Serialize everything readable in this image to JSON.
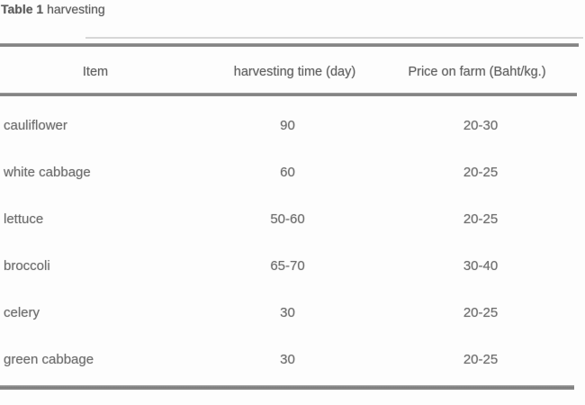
{
  "caption": {
    "number": "Table 1",
    "text": " harvesting"
  },
  "table": {
    "columns": [
      "Item",
      "harvesting time (day)",
      "Price on farm (Baht/kg.)"
    ],
    "rows": [
      {
        "item": "cauliflower",
        "time": "90",
        "price": "20-30"
      },
      {
        "item": "white cabbage",
        "time": "60",
        "price": "20-25"
      },
      {
        "item": "lettuce",
        "time": "50-60",
        "price": "20-25"
      },
      {
        "item": "broccoli",
        "time": "65-70",
        "price": "30-40"
      },
      {
        "item": "celery",
        "time": "30",
        "price": "20-25"
      },
      {
        "item": "green cabbage",
        "time": "30",
        "price": "20-25"
      }
    ]
  },
  "colors": {
    "text": "#696969",
    "rule": "#858585",
    "background": "#fdfdfd"
  }
}
